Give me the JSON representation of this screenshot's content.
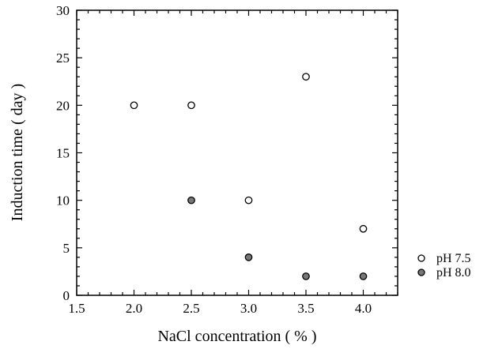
{
  "chart_data": {
    "type": "scatter",
    "xlabel": "NaCl concentration  ( % )",
    "ylabel": "Induction  time ( day )",
    "xlim": [
      1.5,
      4.3
    ],
    "ylim": [
      0,
      30
    ],
    "x_ticks": [
      1.5,
      2.0,
      2.5,
      3.0,
      3.5,
      4.0
    ],
    "x_tick_labels": [
      "1.5",
      "2.0",
      "2.5",
      "3.0",
      "3.5",
      "4.0"
    ],
    "y_ticks": [
      0,
      5,
      10,
      15,
      20,
      25,
      30
    ],
    "y_tick_labels": [
      "0",
      "5",
      "10",
      "15",
      "20",
      "25",
      "30"
    ],
    "grid": false,
    "legend_position": "right-bottom, outside plot",
    "series": [
      {
        "name": "pH 7.5",
        "marker": "open-circle",
        "color": "#000000",
        "points": [
          {
            "x": 2.0,
            "y": 20
          },
          {
            "x": 2.5,
            "y": 20
          },
          {
            "x": 3.0,
            "y": 10
          },
          {
            "x": 3.5,
            "y": 23
          },
          {
            "x": 4.0,
            "y": 7
          }
        ]
      },
      {
        "name": "pH 8.0",
        "marker": "filled-circle",
        "color": "#777777",
        "points": [
          {
            "x": 2.5,
            "y": 10
          },
          {
            "x": 3.0,
            "y": 4
          },
          {
            "x": 3.5,
            "y": 2
          },
          {
            "x": 4.0,
            "y": 2
          }
        ]
      }
    ]
  }
}
